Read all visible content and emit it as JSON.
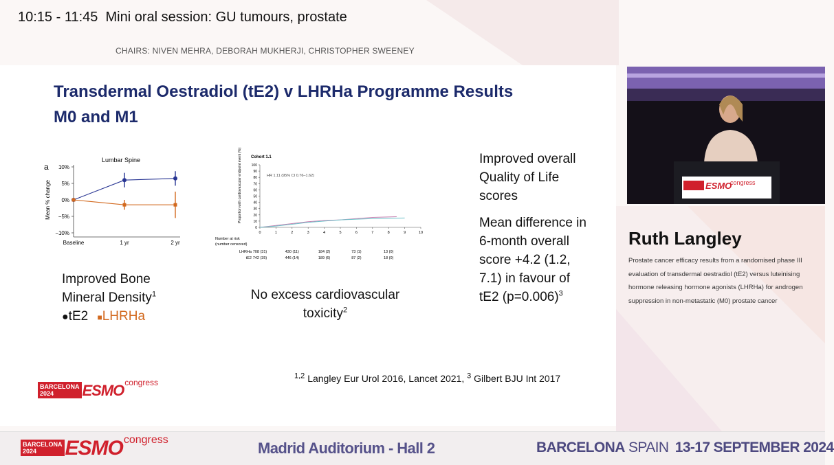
{
  "header": {
    "session_time": "10:15 - 11:45",
    "session_title": "Mini oral session: GU tumours, prostate",
    "chairs": "CHAIRS: NIVEN MEHRA, DEBORAH MUKHERJI, CHRISTOPHER SWEENEY"
  },
  "slide": {
    "title_line1": "Transdermal Oestradiol (tE2) v LHRHa Programme Results",
    "title_line2": "M0 and M1",
    "bone_text": "Improved Bone Mineral Density",
    "bone_ref": "1",
    "cv_text": "No excess cardiovascular toxicity",
    "cv_ref": "2",
    "qol_text": "Improved overall Quality of Life scores",
    "qol_detail": "Mean difference in 6-month overall score +4.2 (1.2, 7.1) in favour of tE2 (p=0.006)",
    "qol_ref": "3",
    "references": {
      "sup1": "1,2",
      "text1": "Langley Eur Urol 2016, Lancet 2021,",
      "sup2": "3",
      "text2": "Gilbert BJU Int 2017"
    }
  },
  "logo": {
    "city": "BARCELONA",
    "year": "2024",
    "brand": "ESMO",
    "suffix": "congress"
  },
  "speaker": {
    "name": "Ruth Langley",
    "talk": "Prostate cancer efficacy results from a randomised phase III evaluation of transdermal oestradiol (tE2) versus luteinising hormone releasing hormone agonists (LHRHa) for androgen suppression in non-metastatic (M0) prostate cancer"
  },
  "footer": {
    "venue": "Madrid Auditorium - Hall 2",
    "city": "BARCELONA",
    "country": "SPAIN",
    "dates": "13-17 SEPTEMBER 2024"
  },
  "chart_data": [
    {
      "type": "line",
      "panel": "a",
      "title": "Lumbar Spine",
      "y_label": "Mean % change",
      "categories": [
        "Baseline",
        "1 yr",
        "2 yr"
      ],
      "series": [
        {
          "name": "tE2",
          "color": "#283593",
          "values": [
            0,
            6,
            6.5
          ],
          "errors": [
            0,
            2.2,
            2.2
          ]
        },
        {
          "name": "LHRHa",
          "color": "#d2691e",
          "values": [
            0,
            -1.5,
            -1.5
          ],
          "errors": [
            0,
            1.5,
            4
          ]
        }
      ],
      "ylim": [
        -10,
        10
      ],
      "yticks": [
        {
          "value": 10,
          "label": "10%"
        },
        {
          "value": 5,
          "label": "5%"
        },
        {
          "value": 0,
          "label": "0%"
        },
        {
          "value": -5,
          "label": "−5%"
        },
        {
          "value": -10,
          "label": "−10%"
        }
      ]
    },
    {
      "type": "line",
      "title": "Cohort 1.1",
      "annotation": "HR 1.11 (95% CI 0.76–1.62)",
      "y_label": "Proportion with cardiovascular endpoint event (%)",
      "series": [
        {
          "name": "LHRHa",
          "color": "#c77fb0",
          "x": [
            0,
            1,
            2,
            3,
            4,
            5,
            6,
            7,
            8.5
          ],
          "values": [
            0,
            3,
            6,
            9,
            11,
            12,
            14,
            16,
            17
          ]
        },
        {
          "name": "tE2",
          "color": "#6cc0c8",
          "x": [
            0,
            1,
            2,
            3,
            4,
            5,
            6,
            7,
            9
          ],
          "values": [
            0,
            2,
            5,
            8,
            10,
            12,
            13,
            14,
            15
          ]
        }
      ],
      "xlim": [
        0,
        10
      ],
      "xticks": [
        0,
        1,
        2,
        3,
        4,
        5,
        6,
        7,
        8,
        9,
        10
      ],
      "ylim": [
        0,
        100
      ],
      "yticks": [
        0,
        10,
        20,
        30,
        40,
        50,
        60,
        70,
        80,
        90,
        100
      ],
      "risk_table": {
        "title": "Number at risk",
        "subtitle": "(number censored)",
        "times": [
          0,
          2,
          4,
          6,
          8
        ],
        "rows": [
          {
            "label": "LHRHa",
            "values": [
              "708 (31)",
              "430 (11)",
              "184 (2)",
              "73 (1)",
              "13 (0)"
            ]
          },
          {
            "label": "tE2",
            "values": [
              "742 (35)",
              "446 (14)",
              "189 (6)",
              "87 (2)",
              "18 (0)"
            ]
          }
        ]
      }
    }
  ]
}
